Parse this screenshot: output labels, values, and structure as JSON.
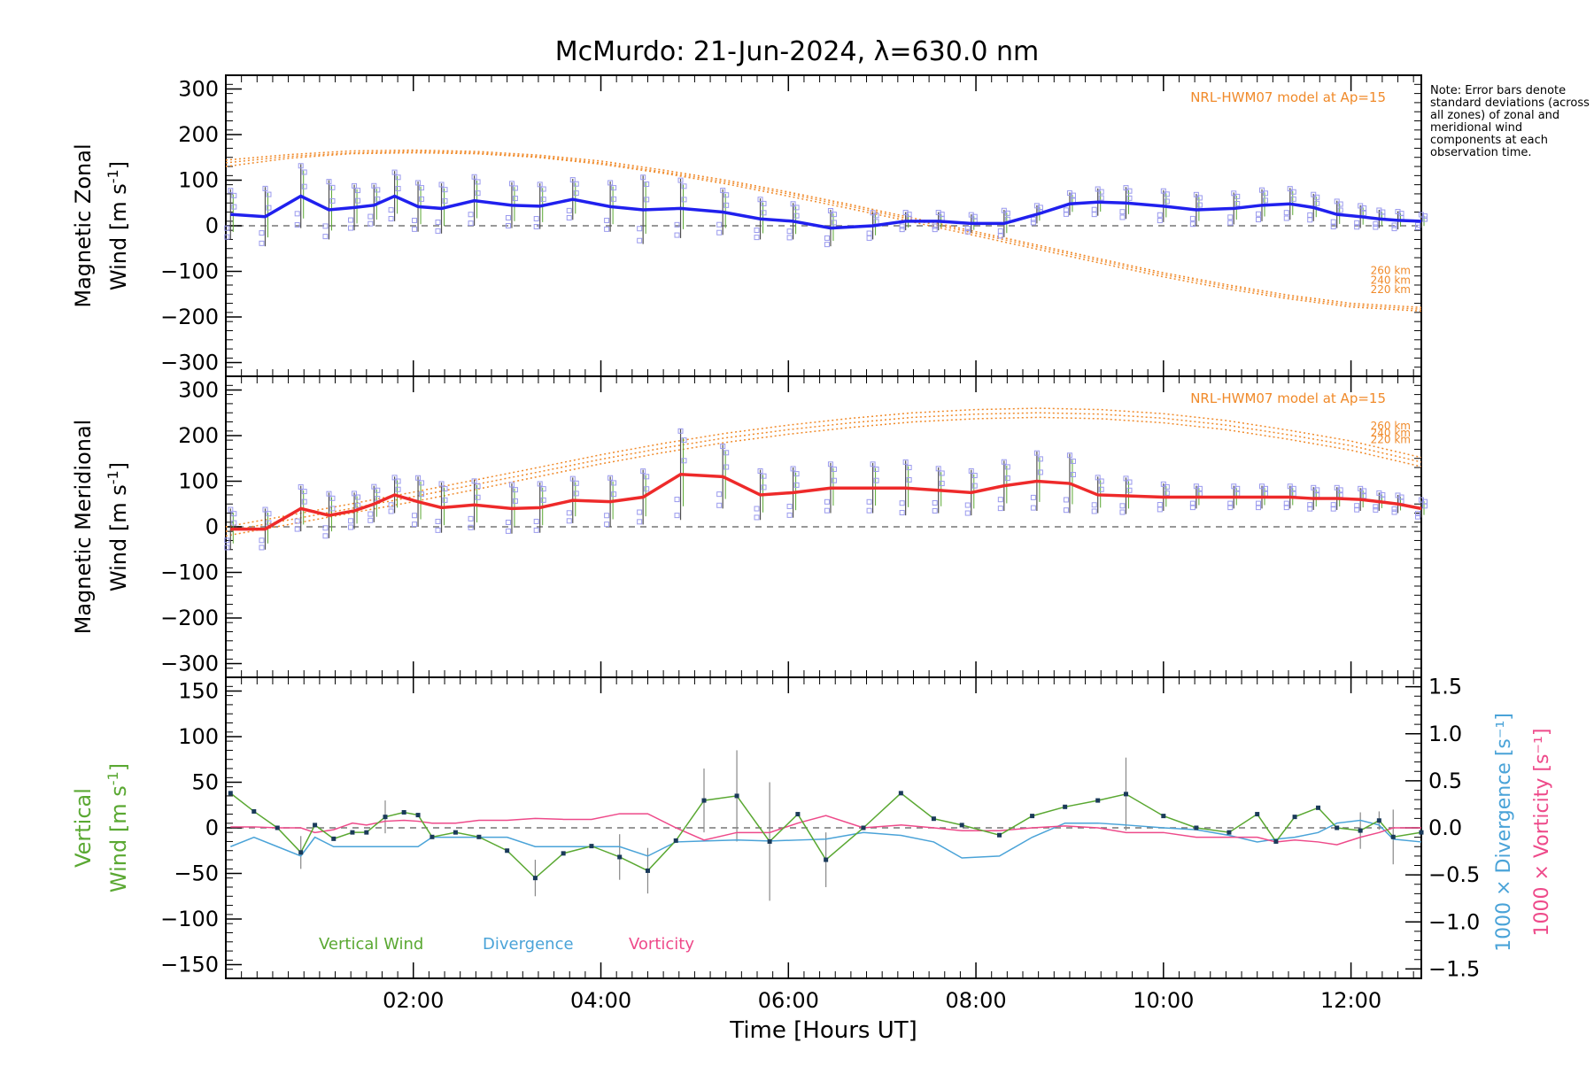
{
  "title": "McMurdo: 21-Jun-2024, λ=630.0 nm",
  "note": "Note: Error bars denote standard deviations (across all zones) of zonal and meridional wind components at each observation time.",
  "colors": {
    "zonal": "#2020ee",
    "meridional": "#ee2a2a",
    "vertical": "#5aa832",
    "divergence": "#4aa3d8",
    "vorticity": "#ee4a8a",
    "model": "#f08a2a",
    "zone_points": "#9a9aee",
    "error_bars": "#505050"
  },
  "chart_data": [
    {
      "type": "line",
      "panel": "zonal",
      "ylabel": "Magnetic Zonal Wind [m s⁻¹]",
      "ylabel_line1": "Magnetic Zonal",
      "ylabel_line2": "Wind [m s",
      "ylabel_unit_sup": "-1",
      "ylabel_close": "]",
      "ylim": [
        -330,
        330
      ],
      "yticks": [
        "300",
        "200",
        "100",
        "0",
        "−100",
        "−200",
        "−300"
      ],
      "x": [
        0.05,
        0.42,
        0.8,
        1.1,
        1.37,
        1.58,
        1.8,
        2.05,
        2.3,
        2.65,
        3.05,
        3.35,
        3.7,
        4.1,
        4.45,
        4.85,
        5.3,
        5.7,
        6.05,
        6.45,
        6.9,
        7.25,
        7.6,
        7.95,
        8.3,
        8.65,
        9.0,
        9.3,
        9.6,
        10.0,
        10.35,
        10.75,
        11.05,
        11.35,
        11.6,
        11.85,
        12.1,
        12.3,
        12.5,
        12.75
      ],
      "series": [
        {
          "values": [
            25,
            20,
            65,
            35,
            40,
            45,
            65,
            42,
            38,
            55,
            45,
            43,
            58,
            42,
            35,
            38,
            30,
            15,
            10,
            -5,
            0,
            10,
            10,
            5,
            5,
            25,
            48,
            52,
            50,
            43,
            35,
            38,
            45,
            48,
            40,
            25,
            20,
            15,
            12,
            10
          ]
        }
      ],
      "error": [
        55,
        65,
        70,
        65,
        50,
        45,
        55,
        55,
        55,
        55,
        50,
        50,
        45,
        55,
        75,
        65,
        50,
        45,
        40,
        40,
        30,
        20,
        20,
        20,
        30,
        20,
        25,
        30,
        35,
        35,
        35,
        35,
        35,
        35,
        30,
        30,
        25,
        20,
        20,
        15
      ],
      "model_label": "NRL-HWM07 model at Ap=15",
      "model_curves": [
        {
          "name": "260 km",
          "values": [
            130,
            148,
            158,
            160,
            158,
            150,
            135,
            115,
            92,
            65,
            37,
            8,
            -22,
            -52,
            -82,
            -112,
            -138,
            -160,
            -178,
            -187
          ]
        },
        {
          "name": "240 km",
          "values": [
            138,
            152,
            160,
            163,
            160,
            152,
            138,
            118,
            96,
            70,
            42,
            13,
            -17,
            -47,
            -77,
            -107,
            -133,
            -156,
            -174,
            -183
          ]
        },
        {
          "name": "220 km",
          "values": [
            144,
            156,
            164,
            166,
            163,
            155,
            142,
            122,
            100,
            74,
            46,
            17,
            -13,
            -43,
            -73,
            -103,
            -129,
            -152,
            -170,
            -179
          ]
        }
      ],
      "model_x": [
        0,
        0.67,
        1.33,
        2.0,
        2.67,
        3.33,
        4.0,
        4.67,
        5.33,
        6.0,
        6.67,
        7.33,
        8.0,
        8.67,
        9.33,
        10.0,
        10.67,
        11.33,
        12.0,
        12.75
      ]
    },
    {
      "type": "line",
      "panel": "meridional",
      "ylabel": "Magnetic Meridional Wind [m s⁻¹]",
      "ylabel_line1": "Magnetic Meridional",
      "ylabel_line2": "Wind [m s",
      "ylabel_unit_sup": "-1",
      "ylabel_close": "]",
      "ylim": [
        -330,
        330
      ],
      "yticks": [
        "300",
        "200",
        "100",
        "0",
        "−100",
        "−200",
        "−300"
      ],
      "x": [
        0.05,
        0.42,
        0.8,
        1.1,
        1.37,
        1.58,
        1.8,
        2.05,
        2.3,
        2.65,
        3.05,
        3.35,
        3.7,
        4.1,
        4.45,
        4.85,
        5.3,
        5.7,
        6.05,
        6.45,
        6.9,
        7.25,
        7.6,
        7.95,
        8.3,
        8.65,
        9.0,
        9.3,
        9.6,
        10.0,
        10.35,
        10.75,
        11.05,
        11.35,
        11.6,
        11.85,
        12.1,
        12.3,
        12.5,
        12.75
      ],
      "series": [
        {
          "values": [
            -5,
            -5,
            40,
            25,
            35,
            50,
            70,
            55,
            42,
            48,
            40,
            42,
            58,
            55,
            65,
            115,
            110,
            70,
            75,
            85,
            85,
            85,
            80,
            75,
            90,
            100,
            95,
            70,
            68,
            65,
            65,
            65,
            65,
            65,
            62,
            62,
            60,
            55,
            50,
            40
          ]
        }
      ],
      "error": [
        45,
        45,
        50,
        50,
        40,
        40,
        40,
        55,
        55,
        55,
        55,
        55,
        50,
        55,
        60,
        100,
        70,
        55,
        55,
        55,
        55,
        60,
        50,
        50,
        55,
        65,
        65,
        40,
        40,
        30,
        25,
        25,
        25,
        25,
        25,
        25,
        25,
        20,
        20,
        20
      ],
      "model_label": "NRL-HWM07 model at Ap=15",
      "model_curves": [
        {
          "name": "260 km",
          "values": [
            -20,
            5,
            30,
            55,
            82,
            110,
            138,
            163,
            185,
            203,
            218,
            230,
            237,
            240,
            237,
            228,
            213,
            192,
            168,
            132
          ]
        },
        {
          "name": "240 km",
          "values": [
            -10,
            15,
            40,
            66,
            93,
            120,
            148,
            173,
            195,
            213,
            228,
            240,
            247,
            250,
            247,
            238,
            223,
            202,
            178,
            142
          ]
        },
        {
          "name": "220 km",
          "values": [
            0,
            25,
            50,
            76,
            103,
            130,
            158,
            183,
            205,
            223,
            238,
            250,
            257,
            260,
            257,
            248,
            233,
            212,
            188,
            152
          ]
        }
      ],
      "model_x": [
        0,
        0.67,
        1.33,
        2.0,
        2.67,
        3.33,
        4.0,
        4.67,
        5.33,
        6.0,
        6.67,
        7.33,
        8.0,
        8.67,
        9.33,
        10.0,
        10.67,
        11.33,
        12.0,
        12.75
      ]
    },
    {
      "type": "line",
      "panel": "vertical",
      "ylabel": "Vertical Wind [m s⁻¹]",
      "ylabel_line1": "Vertical",
      "ylabel_line2": "Wind [m s",
      "ylabel_unit_sup": "-1",
      "ylabel_close": "]",
      "ylim": [
        -165,
        165
      ],
      "yticks": [
        "150",
        "100",
        "50",
        "0",
        "−50",
        "−100",
        "−150"
      ],
      "y2label_div": "1000 × Divergence [s⁻¹]",
      "y2label_vort": "1000 × Vorticity [s⁻¹]",
      "y2lim": [
        -1.6,
        1.6
      ],
      "y2ticks": [
        "1.5",
        "1.0",
        "0.5",
        "0.0",
        "−0.5",
        "−1.0",
        "−1.5"
      ],
      "xlabel": "Time [Hours UT]",
      "xticks": [
        "02:00",
        "04:00",
        "06:00",
        "08:00",
        "10:00",
        "12:00"
      ],
      "xtick_values": [
        2,
        4,
        6,
        8,
        10,
        12
      ],
      "xlim": [
        0,
        12.75
      ],
      "legend": [
        "Vertical Wind",
        "Divergence",
        "Vorticity"
      ],
      "x": [
        0.05,
        0.3,
        0.55,
        0.8,
        0.95,
        1.15,
        1.35,
        1.5,
        1.7,
        1.9,
        2.05,
        2.2,
        2.45,
        2.7,
        3.0,
        3.3,
        3.6,
        3.9,
        4.2,
        4.5,
        4.8,
        5.1,
        5.45,
        5.8,
        6.1,
        6.4,
        6.8,
        7.2,
        7.55,
        7.85,
        8.25,
        8.6,
        8.95,
        9.3,
        9.6,
        10.0,
        10.35,
        10.7,
        11.0,
        11.2,
        11.4,
        11.65,
        11.85,
        12.1,
        12.3,
        12.45,
        12.75
      ],
      "series": [
        {
          "name": "Vertical Wind",
          "values": [
            38,
            18,
            0,
            -27,
            3,
            -12,
            -5,
            -5,
            12,
            17,
            14,
            -10,
            -5,
            -10,
            -25,
            -55,
            -28,
            -20,
            -32,
            -47,
            -14,
            30,
            35,
            -15,
            15,
            -35,
            0,
            38,
            10,
            3,
            -8,
            13,
            23,
            30,
            37,
            13,
            0,
            -5,
            15,
            -15,
            12,
            22,
            0,
            -3,
            8,
            -10,
            -5
          ]
        },
        {
          "name": "Divergence",
          "values": [
            -2,
            -1,
            -2,
            -3,
            -1,
            -2,
            -2,
            -2,
            -2,
            -2,
            -2,
            -1,
            -1,
            -1,
            -1,
            -2,
            -2,
            -2,
            -2,
            -3,
            -1.5,
            -1.4,
            -1.3,
            -1.4,
            -1.3,
            -1.2,
            -0.5,
            -0.8,
            -1.5,
            -3.2,
            -3.0,
            -1.0,
            0.5,
            0.5,
            0.3,
            0.0,
            -0.2,
            -0.8,
            -1.5,
            -1.2,
            -1.0,
            -0.5,
            0.5,
            0.8,
            0.3,
            -1.2,
            -1.5
          ]
        },
        {
          "name": "Vorticity",
          "values": [
            0.1,
            0.1,
            0.0,
            0.0,
            -0.5,
            -0.2,
            0.5,
            0.3,
            0.7,
            0.8,
            0.7,
            0.5,
            0.5,
            0.8,
            0.8,
            1.0,
            0.9,
            0.9,
            1.5,
            1.5,
            0.0,
            -1.3,
            -0.5,
            -0.5,
            0.5,
            1.3,
            0.0,
            0.3,
            0.0,
            -0.3,
            -0.3,
            0.0,
            0.2,
            0.0,
            -0.5,
            -0.5,
            -1.0,
            -1.0,
            -1.0,
            -1.5,
            -1.3,
            -1.5,
            -1.8,
            -1.0,
            -0.5,
            0.0,
            0.0
          ]
        }
      ],
      "error": [
        0,
        0,
        0,
        18,
        0,
        0,
        0,
        0,
        18,
        0,
        0,
        0,
        0,
        0,
        0,
        20,
        0,
        0,
        25,
        25,
        0,
        35,
        50,
        65,
        0,
        30,
        0,
        0,
        0,
        0,
        0,
        0,
        0,
        0,
        40,
        0,
        0,
        0,
        0,
        0,
        0,
        0,
        0,
        20,
        10,
        30,
        0
      ]
    }
  ]
}
